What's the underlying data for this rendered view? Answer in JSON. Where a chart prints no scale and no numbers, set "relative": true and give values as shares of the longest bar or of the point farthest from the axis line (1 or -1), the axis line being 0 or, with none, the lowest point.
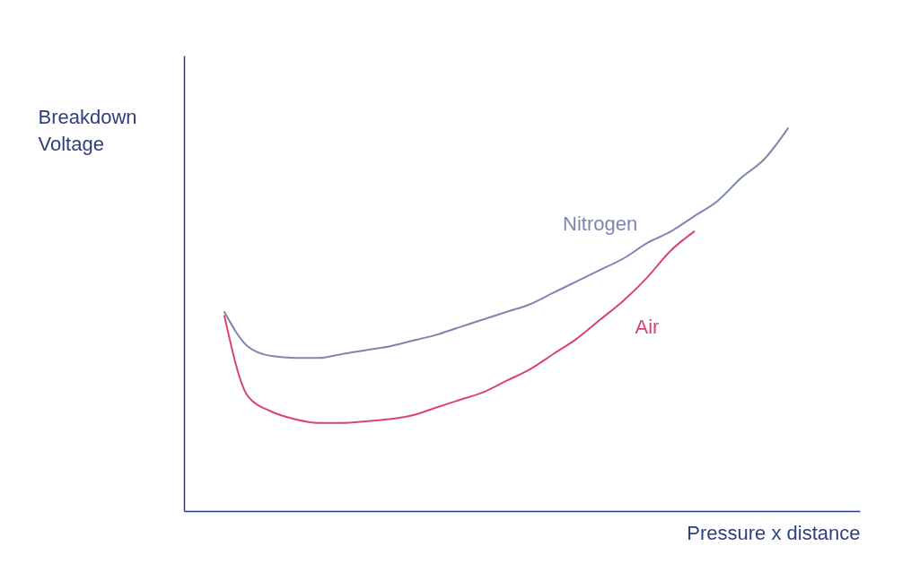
{
  "chart_data": {
    "type": "line",
    "relative": true,
    "xlabel": "Pressure x distance",
    "ylabel": "Breakdown\nVoltage",
    "legend": false,
    "grid": false,
    "marker": "none",
    "line_style": "solid",
    "categories": [
      null,
      null,
      null,
      null,
      null,
      null,
      null,
      null,
      null,
      null,
      null,
      null,
      null,
      null,
      null,
      null,
      null,
      null,
      null,
      null,
      null,
      null,
      null,
      null,
      null
    ],
    "series": [
      {
        "name": "Nitrogen",
        "color": "#7e86b0",
        "values": [
          0.52,
          0.43,
          0.405,
          0.4,
          0.4,
          0.41,
          0.42,
          0.43,
          0.445,
          0.46,
          0.48,
          0.5,
          0.52,
          0.54,
          0.57,
          0.6,
          0.63,
          0.66,
          0.7,
          0.73,
          0.77,
          0.81,
          0.87,
          0.92,
          1.0
        ]
      },
      {
        "name": "Air",
        "color": "#d9466b",
        "values": [
          0.51,
          0.3,
          0.26,
          0.24,
          0.23,
          0.23,
          0.234,
          0.24,
          0.25,
          0.27,
          0.29,
          0.31,
          0.34,
          0.37,
          0.41,
          0.45,
          0.5,
          0.55,
          0.61,
          0.68,
          0.73,
          null,
          null,
          null,
          null
        ]
      }
    ]
  }
}
